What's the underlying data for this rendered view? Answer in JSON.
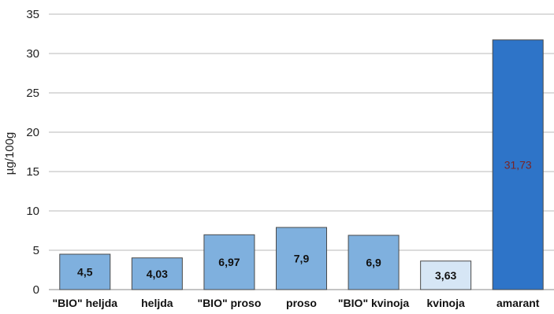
{
  "chart_data": {
    "type": "bar",
    "categories": [
      "\"BIO\" heljda",
      "heljda",
      "\"BIO\" proso",
      "proso",
      "\"BIO\" kvinoja",
      "kvinoja",
      "amarant"
    ],
    "values": [
      4.5,
      4.03,
      6.97,
      7.9,
      6.9,
      3.63,
      31.73
    ],
    "data_labels": [
      "4,5",
      "4,03",
      "6,97",
      "7,9",
      "6,9",
      "3,63",
      "31,73"
    ],
    "bar_colors": [
      "#7fb0de",
      "#7fb0de",
      "#7fb0de",
      "#7fb0de",
      "#7fb0de",
      "#d6e6f5",
      "#2e74c8"
    ],
    "label_colors": [
      "#111111",
      "#111111",
      "#111111",
      "#111111",
      "#111111",
      "#111111",
      "#7a2424"
    ],
    "ylabel": "µg/100g",
    "xlabel": "",
    "ylim": [
      0,
      35
    ],
    "yticks": [
      0,
      5,
      10,
      15,
      20,
      25,
      30,
      35
    ],
    "grid": true,
    "legend": "none"
  }
}
